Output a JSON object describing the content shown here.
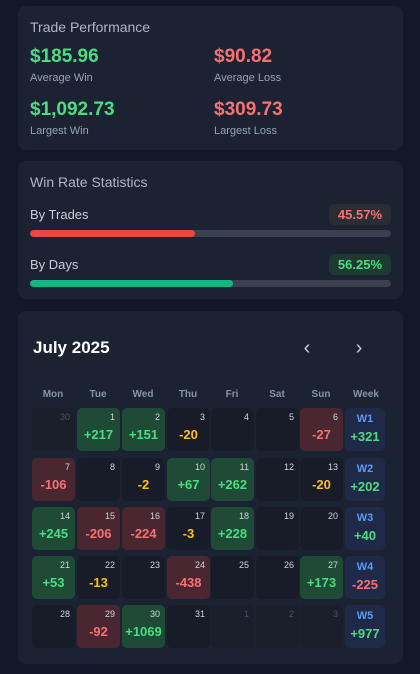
{
  "performance": {
    "title": "Trade Performance",
    "avg_win": {
      "value": "$185.96",
      "label": "Average Win"
    },
    "avg_loss": {
      "value": "$90.82",
      "label": "Average Loss"
    },
    "largest_win": {
      "value": "$1,092.73",
      "label": "Largest Win"
    },
    "largest_loss": {
      "value": "$309.73",
      "label": "Largest Loss"
    }
  },
  "winrate": {
    "title": "Win Rate Statistics",
    "by_trades": {
      "label": "By Trades",
      "value": "45.57%",
      "fraction": 0.4557
    },
    "by_days": {
      "label": "By Days",
      "value": "56.25%",
      "fraction": 0.5625
    }
  },
  "calendar": {
    "month": "July 2025",
    "prev_icon": "chevron-left-icon",
    "next_icon": "chevron-right-icon",
    "weekdays": [
      "Mon",
      "Tue",
      "Wed",
      "Thu",
      "Fri",
      "Sat",
      "Sun"
    ],
    "week_header": "Week",
    "days": [
      {
        "d": "30",
        "pl": "",
        "muted": true
      },
      {
        "d": "1",
        "pl": "+217"
      },
      {
        "d": "2",
        "pl": "+151"
      },
      {
        "d": "3",
        "pl": "-20"
      },
      {
        "d": "4",
        "pl": ""
      },
      {
        "d": "5",
        "pl": ""
      },
      {
        "d": "6",
        "pl": "-27"
      },
      {
        "d": "7",
        "pl": "-106"
      },
      {
        "d": "8",
        "pl": ""
      },
      {
        "d": "9",
        "pl": "-2"
      },
      {
        "d": "10",
        "pl": "+67"
      },
      {
        "d": "11",
        "pl": "+262"
      },
      {
        "d": "12",
        "pl": ""
      },
      {
        "d": "13",
        "pl": "-20"
      },
      {
        "d": "14",
        "pl": "+245"
      },
      {
        "d": "15",
        "pl": "-206"
      },
      {
        "d": "16",
        "pl": "-224"
      },
      {
        "d": "17",
        "pl": "-3"
      },
      {
        "d": "18",
        "pl": "+228"
      },
      {
        "d": "19",
        "pl": ""
      },
      {
        "d": "20",
        "pl": ""
      },
      {
        "d": "21",
        "pl": "+53"
      },
      {
        "d": "22",
        "pl": "-13"
      },
      {
        "d": "23",
        "pl": ""
      },
      {
        "d": "24",
        "pl": "-438"
      },
      {
        "d": "25",
        "pl": ""
      },
      {
        "d": "26",
        "pl": ""
      },
      {
        "d": "27",
        "pl": "+173"
      },
      {
        "d": "28",
        "pl": ""
      },
      {
        "d": "29",
        "pl": "-92"
      },
      {
        "d": "30",
        "pl": "+1069"
      },
      {
        "d": "31",
        "pl": ""
      },
      {
        "d": "1",
        "pl": "",
        "muted": true
      },
      {
        "d": "2",
        "pl": "",
        "muted": true
      },
      {
        "d": "3",
        "pl": "",
        "muted": true
      }
    ],
    "weeks": [
      {
        "label": "W1",
        "value": "+321"
      },
      {
        "label": "W2",
        "value": "+202"
      },
      {
        "label": "W3",
        "value": "+40"
      },
      {
        "label": "W4",
        "value": "-225"
      },
      {
        "label": "W5",
        "value": "+977"
      }
    ],
    "colors": {
      "win": "#4ade80",
      "loss": "#f87171",
      "small": "#fbbf24",
      "week_label": "#5b9bf8"
    }
  }
}
